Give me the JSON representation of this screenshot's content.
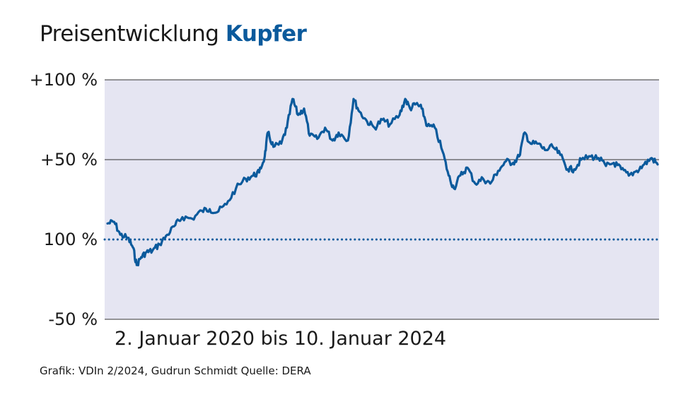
{
  "title_prefix": "Preisentwicklung",
  "title_highlight": "Kupfer",
  "subtitle": "2. Januar 2020 bis 10. Januar 2024",
  "source": "Grafik: VDIn 2/2024, Gudrun Schmidt Quelle: DERA",
  "colors": {
    "line": "#0b5a9c",
    "band": "#e5e5f2",
    "gridline": "#333333",
    "baseline": "#0b5a9c"
  },
  "chart_data": {
    "type": "line",
    "title": "Preisentwicklung Kupfer",
    "xlabel": "2. Januar 2020 bis 10. Januar 2024",
    "x_range": [
      "2020-01-02",
      "2024-01-10"
    ],
    "ylim": [
      -50,
      100
    ],
    "y_ticks": [
      {
        "value": 100,
        "label": "+100 %"
      },
      {
        "value": 50,
        "label": "+50 %"
      },
      {
        "value": 0,
        "label": "100 %"
      },
      {
        "value": -50,
        "label": "-50 %"
      }
    ],
    "grid": true,
    "baseline_value": 0,
    "series": [
      {
        "points": [
          [
            "2020-01-02",
            10
          ],
          [
            "2020-01-20",
            11
          ],
          [
            "2020-02-05",
            3
          ],
          [
            "2020-02-25",
            1
          ],
          [
            "2020-03-10",
            -5
          ],
          [
            "2020-03-20",
            -16
          ],
          [
            "2020-04-01",
            -11
          ],
          [
            "2020-04-15",
            -8
          ],
          [
            "2020-05-01",
            -7
          ],
          [
            "2020-05-20",
            -3
          ],
          [
            "2020-06-10",
            3
          ],
          [
            "2020-07-01",
            9
          ],
          [
            "2020-07-20",
            14
          ],
          [
            "2020-08-15",
            13
          ],
          [
            "2020-09-10",
            18
          ],
          [
            "2020-10-01",
            19
          ],
          [
            "2020-10-20",
            17
          ],
          [
            "2020-11-15",
            22
          ],
          [
            "2020-12-10",
            32
          ],
          [
            "2021-01-05",
            38
          ],
          [
            "2021-01-25",
            40
          ],
          [
            "2021-02-10",
            42
          ],
          [
            "2021-02-25",
            52
          ],
          [
            "2021-03-05",
            67
          ],
          [
            "2021-03-20",
            58
          ],
          [
            "2021-04-10",
            60
          ],
          [
            "2021-04-25",
            70
          ],
          [
            "2021-05-10",
            88
          ],
          [
            "2021-05-25",
            78
          ],
          [
            "2021-06-10",
            82
          ],
          [
            "2021-06-25",
            65
          ],
          [
            "2021-07-15",
            63
          ],
          [
            "2021-08-05",
            70
          ],
          [
            "2021-08-25",
            62
          ],
          [
            "2021-09-10",
            67
          ],
          [
            "2021-10-05",
            62
          ],
          [
            "2021-10-20",
            88
          ],
          [
            "2021-11-05",
            80
          ],
          [
            "2021-11-25",
            74
          ],
          [
            "2021-12-15",
            70
          ],
          [
            "2022-01-05",
            75
          ],
          [
            "2022-01-25",
            72
          ],
          [
            "2022-02-20",
            78
          ],
          [
            "2022-03-07",
            88
          ],
          [
            "2022-03-20",
            82
          ],
          [
            "2022-04-05",
            85
          ],
          [
            "2022-04-20",
            82
          ],
          [
            "2022-05-05",
            71
          ],
          [
            "2022-05-25",
            70
          ],
          [
            "2022-06-15",
            55
          ],
          [
            "2022-07-01",
            40
          ],
          [
            "2022-07-15",
            32
          ],
          [
            "2022-08-01",
            40
          ],
          [
            "2022-08-20",
            45
          ],
          [
            "2022-09-10",
            35
          ],
          [
            "2022-10-01",
            38
          ],
          [
            "2022-10-20",
            35
          ],
          [
            "2022-11-10",
            43
          ],
          [
            "2022-12-01",
            49
          ],
          [
            "2022-12-20",
            48
          ],
          [
            "2023-01-05",
            52
          ],
          [
            "2023-01-20",
            67
          ],
          [
            "2023-02-05",
            60
          ],
          [
            "2023-02-25",
            60
          ],
          [
            "2023-03-15",
            56
          ],
          [
            "2023-04-05",
            58
          ],
          [
            "2023-04-25",
            53
          ],
          [
            "2023-05-15",
            44
          ],
          [
            "2023-06-01",
            44
          ],
          [
            "2023-06-20",
            50
          ],
          [
            "2023-07-15",
            52
          ],
          [
            "2023-08-05",
            51
          ],
          [
            "2023-08-25",
            46
          ],
          [
            "2023-09-15",
            48
          ],
          [
            "2023-10-05",
            44
          ],
          [
            "2023-10-25",
            40
          ],
          [
            "2023-11-15",
            43
          ],
          [
            "2023-12-05",
            47
          ],
          [
            "2023-12-25",
            51
          ],
          [
            "2024-01-10",
            47
          ]
        ]
      }
    ]
  }
}
